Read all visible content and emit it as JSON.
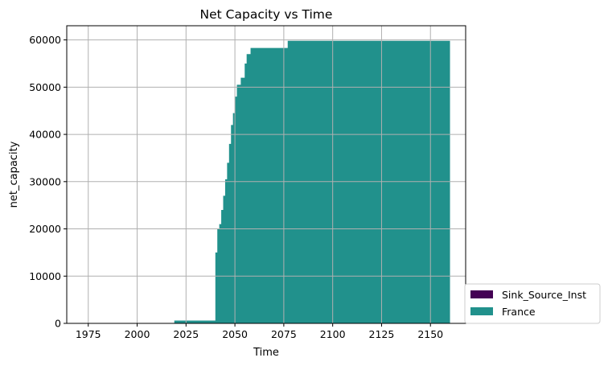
{
  "chart_data": {
    "type": "area",
    "title": "Net Capacity vs Time",
    "xlabel": "Time",
    "ylabel": "net_capacity",
    "xlim": [
      1964,
      2168
    ],
    "ylim": [
      0,
      63000
    ],
    "xticks": [
      1975,
      2000,
      2025,
      2050,
      2075,
      2100,
      2125,
      2150
    ],
    "yticks": [
      0,
      10000,
      20000,
      30000,
      40000,
      50000,
      60000
    ],
    "grid": true,
    "legend_position": "lower-right-outside",
    "series": [
      {
        "name": "Sink_Source_Inst",
        "color": "#440154",
        "steps": [
          [
            1965,
            0
          ],
          [
            2160,
            0
          ]
        ]
      },
      {
        "name": "France",
        "color": "#21918c",
        "steps": [
          [
            1965,
            0
          ],
          [
            2019,
            600
          ],
          [
            2040,
            15000
          ],
          [
            2041,
            20000
          ],
          [
            2042,
            21000
          ],
          [
            2043,
            24000
          ],
          [
            2044,
            27000
          ],
          [
            2045,
            30500
          ],
          [
            2046,
            34000
          ],
          [
            2047,
            38000
          ],
          [
            2048,
            42000
          ],
          [
            2049,
            44500
          ],
          [
            2050,
            48000
          ],
          [
            2051,
            50500
          ],
          [
            2053,
            52000
          ],
          [
            2055,
            55000
          ],
          [
            2056,
            57000
          ],
          [
            2058,
            58300
          ],
          [
            2077,
            59800
          ],
          [
            2160,
            59800
          ]
        ]
      }
    ]
  }
}
